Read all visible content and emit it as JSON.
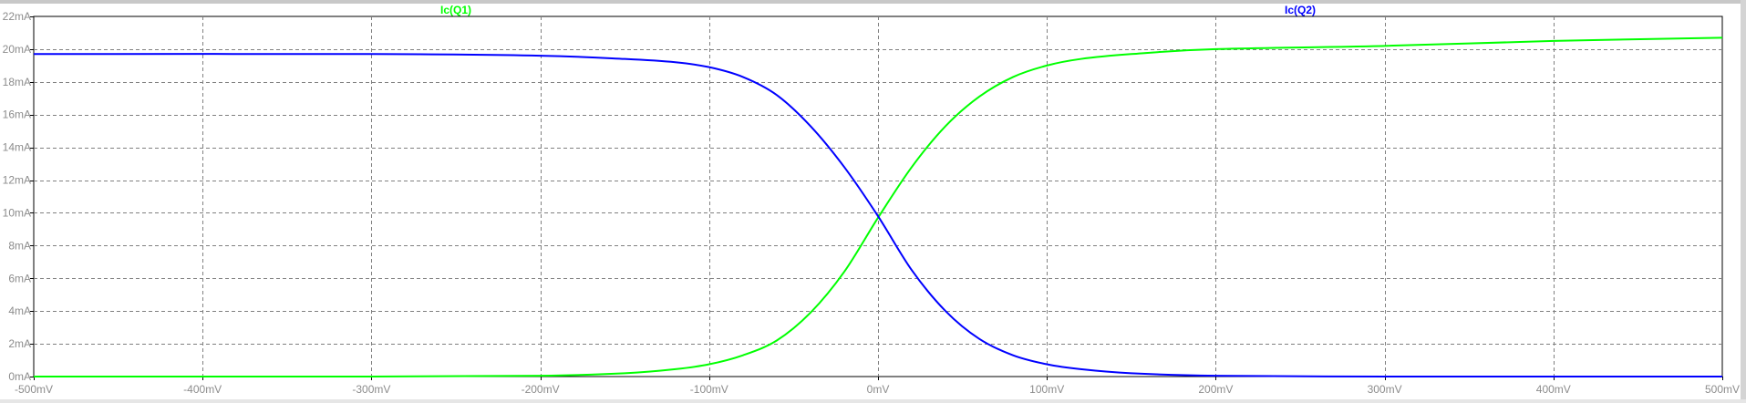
{
  "chart_data": {
    "type": "line",
    "x_unit": "mV",
    "y_unit": "mA",
    "xlim": [
      -500,
      500
    ],
    "ylim": [
      0,
      22
    ],
    "x_ticks": [
      -500,
      -400,
      -300,
      -200,
      -100,
      0,
      100,
      200,
      300,
      400,
      500
    ],
    "x_tick_labels": [
      "-500mV",
      "-400mV",
      "-300mV",
      "-200mV",
      "-100mV",
      "0mV",
      "100mV",
      "200mV",
      "300mV",
      "400mV",
      "500mV"
    ],
    "y_ticks": [
      0,
      2,
      4,
      6,
      8,
      10,
      12,
      14,
      16,
      18,
      20,
      22
    ],
    "y_tick_labels": [
      "0mA",
      "2mA",
      "4mA",
      "6mA",
      "8mA",
      "10mA",
      "12mA",
      "14mA",
      "16mA",
      "18mA",
      "20mA",
      "22mA"
    ],
    "grid": true,
    "series": [
      {
        "name": "Ic(Q1)",
        "color": "#00ff00",
        "x": [
          -500,
          -300,
          -200,
          -150,
          -120,
          -100,
          -80,
          -60,
          -40,
          -20,
          0,
          20,
          40,
          60,
          80,
          100,
          120,
          150,
          200,
          300,
          400,
          500
        ],
        "y": [
          0.0,
          0.0,
          0.05,
          0.2,
          0.45,
          0.75,
          1.3,
          2.2,
          3.9,
          6.4,
          9.7,
          12.8,
          15.3,
          17.1,
          18.3,
          19.0,
          19.4,
          19.7,
          20.0,
          20.2,
          20.5,
          20.7
        ]
      },
      {
        "name": "Ic(Q2)",
        "color": "#0000ff",
        "x": [
          -500,
          -300,
          -200,
          -150,
          -120,
          -100,
          -80,
          -60,
          -40,
          -20,
          0,
          20,
          40,
          60,
          80,
          100,
          120,
          150,
          200,
          300,
          400,
          500
        ],
        "y": [
          19.7,
          19.7,
          19.6,
          19.4,
          19.2,
          18.9,
          18.3,
          17.2,
          15.3,
          12.8,
          9.8,
          6.5,
          4.0,
          2.3,
          1.3,
          0.75,
          0.45,
          0.2,
          0.05,
          0.0,
          0.0,
          0.0
        ]
      }
    ]
  }
}
